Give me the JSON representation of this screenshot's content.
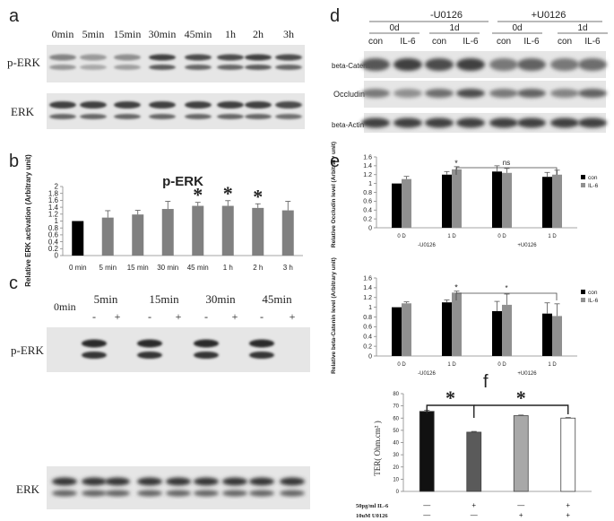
{
  "panels": {
    "a": {
      "letter": "a",
      "lanes": [
        "0min",
        "5min",
        "15min",
        "30min",
        "45min",
        "1h",
        "2h",
        "3h"
      ],
      "rows": [
        "p-ERK",
        "ERK"
      ],
      "perk_intensity": [
        0.55,
        0.45,
        0.5,
        0.85,
        0.8,
        0.8,
        0.85,
        0.8
      ],
      "erk_intensity": [
        0.85,
        0.85,
        0.85,
        0.85,
        0.85,
        0.85,
        0.85,
        0.8
      ]
    },
    "b": {
      "letter": "b"
    },
    "c": {
      "letter": "c",
      "zero_label": "0min",
      "times": [
        "5min",
        "15min",
        "30min",
        "45min"
      ],
      "signs": [
        "-",
        "+"
      ],
      "rows": [
        "p-ERK",
        "ERK"
      ]
    },
    "d": {
      "letter": "d",
      "groups": [
        "-U0126",
        "+U0126"
      ],
      "days": [
        "0d",
        "1d"
      ],
      "conditions": [
        "con",
        "IL-6"
      ],
      "rows": [
        "beta-Catenin",
        "Occludin",
        "beta-Actin"
      ]
    },
    "e": {
      "letter": "e"
    },
    "f": {
      "letter": "f",
      "row_labels": [
        "50pg/ml IL-6",
        "10uM U0126"
      ],
      "treatments": [
        [
          "—",
          "+",
          "—",
          "+"
        ],
        [
          "—",
          "—",
          "+",
          "+"
        ]
      ]
    }
  },
  "chart_data": [
    {
      "id": "b",
      "type": "bar",
      "title": "p-ERK",
      "ylabel": "Relative ERK activation (Arbitrary unit)",
      "xlabel": "",
      "categories": [
        "0 min",
        "5 min",
        "15 min",
        "30 min",
        "45 min",
        "1 h",
        "2 h",
        "3 h"
      ],
      "series": [
        {
          "values": [
            1.0,
            1.1,
            1.19,
            1.35,
            1.44,
            1.44,
            1.38,
            1.31
          ],
          "errors": [
            0,
            0.2,
            0.12,
            0.22,
            0.1,
            0.15,
            0.12,
            0.26
          ]
        }
      ],
      "bar_colors": [
        "#000000",
        "#808080",
        "#808080",
        "#808080",
        "#808080",
        "#808080",
        "#808080",
        "#808080"
      ],
      "yticks": [
        "0",
        "0.2",
        "0.4",
        "0.6",
        "0.8",
        "1",
        "1.2",
        "1.4",
        "1.6",
        "1.8",
        "2"
      ],
      "ylim": [
        0,
        2
      ],
      "significance": [
        "",
        "",
        "",
        "",
        "*",
        "*",
        "*",
        ""
      ]
    },
    {
      "id": "e-top",
      "type": "bar",
      "ylabel": "Relative Occludin level (Arbitrary unit)",
      "categories": [
        "0 D",
        "1 D",
        "0 D",
        "1 D"
      ],
      "group_labels": [
        "-U0126",
        "+U0126"
      ],
      "series": [
        {
          "name": "con",
          "values": [
            1.0,
            1.2,
            1.27,
            1.15
          ],
          "errors": [
            0,
            0.07,
            0.13,
            0.1
          ],
          "color": "#000000"
        },
        {
          "name": "IL-6",
          "values": [
            1.1,
            1.32,
            1.24,
            1.2
          ],
          "errors": [
            0.06,
            0.06,
            0.1,
            0.1
          ],
          "color": "#909090"
        }
      ],
      "yticks": [
        "0",
        "0.2",
        "0.4",
        "0.6",
        "0.8",
        "1",
        "1.2",
        "1.4",
        "1.6"
      ],
      "ylim": [
        0,
        1.6
      ],
      "annotations": [
        "*",
        "ns"
      ],
      "legend": "right"
    },
    {
      "id": "e-bottom",
      "type": "bar",
      "ylabel": "Relative beta-Catenin level (Arbitrary unit)",
      "categories": [
        "0 D",
        "1 D",
        "0 D",
        "1 D"
      ],
      "group_labels": [
        "-U0126",
        "+U0126"
      ],
      "series": [
        {
          "name": "con",
          "values": [
            1.0,
            1.1,
            0.92,
            0.87
          ],
          "errors": [
            0,
            0.05,
            0.2,
            0.22
          ],
          "color": "#000000"
        },
        {
          "name": "IL-6",
          "values": [
            1.08,
            1.3,
            1.05,
            0.82
          ],
          "errors": [
            0.03,
            0.03,
            0.22,
            0.25
          ],
          "color": "#909090"
        }
      ],
      "yticks": [
        "0",
        "0.2",
        "0.4",
        "0.6",
        "0.8",
        "1",
        "1.2",
        "1.4",
        "1.6"
      ],
      "ylim": [
        0,
        1.6
      ],
      "annotations": [
        "*",
        "*"
      ],
      "legend": "right"
    },
    {
      "id": "f",
      "type": "bar",
      "ylabel": "TER( Ohm.cm² )",
      "categories": [
        "",
        "",
        "",
        ""
      ],
      "series": [
        {
          "values": [
            65.5,
            48.5,
            62,
            60
          ],
          "errors": [
            1,
            0.6,
            0.5,
            0.5
          ]
        }
      ],
      "bar_colors": [
        "#111111",
        "#5a5a5a",
        "#a8a8a8",
        "#ffffff"
      ],
      "yticks": [
        "0",
        "10",
        "20",
        "30",
        "40",
        "50",
        "60",
        "70",
        "80"
      ],
      "ylim": [
        0,
        80
      ],
      "significance_labels": [
        "*",
        "*"
      ]
    }
  ]
}
